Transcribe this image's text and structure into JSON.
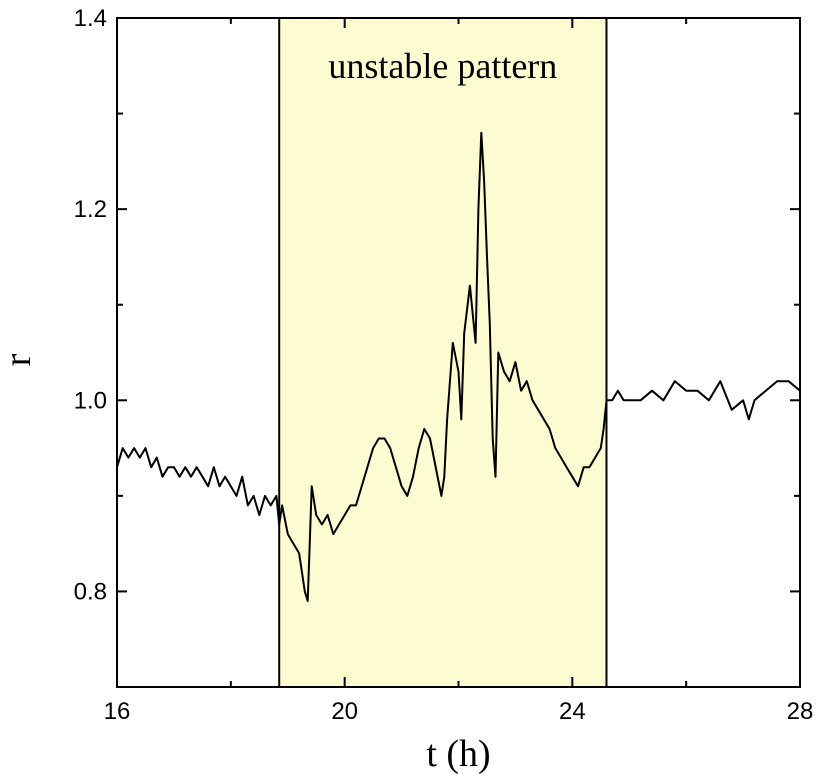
{
  "chart_data": {
    "type": "line",
    "xlabel": "t (h)",
    "ylabel": "r",
    "xlim": [
      16,
      28
    ],
    "ylim": [
      0.7,
      1.4
    ],
    "x_ticks": [
      16,
      20,
      24,
      28
    ],
    "x_tick_labels": [
      "16",
      "20",
      "24",
      "28"
    ],
    "x_minor_ticks": [
      18,
      22,
      26
    ],
    "y_ticks": [
      0.8,
      1.0,
      1.2,
      1.4
    ],
    "y_tick_labels": [
      "0.8",
      "1.0",
      "1.2",
      "1.4"
    ],
    "y_minor_ticks": [
      0.9,
      1.1,
      1.3
    ],
    "grid": false,
    "highlight_region": {
      "x_start": 18.85,
      "x_end": 24.6,
      "label": "unstable pattern",
      "color": "#fdfbd2"
    },
    "line_color": "#000000",
    "series": [
      {
        "x": [
          16.0,
          16.1,
          16.2,
          16.3,
          16.4,
          16.5,
          16.6,
          16.7,
          16.8,
          16.9,
          17.0,
          17.1,
          17.2,
          17.3,
          17.4,
          17.5,
          17.6,
          17.7,
          17.8,
          17.9,
          18.0,
          18.1,
          18.2,
          18.3,
          18.4,
          18.5,
          18.6,
          18.7,
          18.8,
          18.85,
          18.9,
          19.0,
          19.1,
          19.2,
          19.3,
          19.35,
          19.38,
          19.42,
          19.5,
          19.6,
          19.7,
          19.8,
          19.9,
          20.0,
          20.1,
          20.2,
          20.3,
          20.4,
          20.5,
          20.6,
          20.7,
          20.8,
          20.9,
          21.0,
          21.1,
          21.2,
          21.3,
          21.4,
          21.5,
          21.6,
          21.7,
          21.75,
          21.8,
          21.9,
          22.0,
          22.05,
          22.1,
          22.2,
          22.3,
          22.35,
          22.4,
          22.45,
          22.5,
          22.55,
          22.6,
          22.65,
          22.7,
          22.8,
          22.9,
          23.0,
          23.1,
          23.2,
          23.3,
          23.4,
          23.5,
          23.6,
          23.7,
          23.8,
          23.9,
          24.0,
          24.1,
          24.2,
          24.3,
          24.4,
          24.5,
          24.55,
          24.6,
          24.7,
          24.8,
          24.9,
          25.0,
          25.2,
          25.4,
          25.6,
          25.8,
          26.0,
          26.2,
          26.4,
          26.6,
          26.8,
          27.0,
          27.1,
          27.2,
          27.4,
          27.6,
          27.8,
          28.0
        ],
        "y": [
          0.93,
          0.95,
          0.94,
          0.95,
          0.94,
          0.95,
          0.93,
          0.94,
          0.92,
          0.93,
          0.93,
          0.92,
          0.93,
          0.92,
          0.93,
          0.92,
          0.91,
          0.93,
          0.91,
          0.92,
          0.91,
          0.9,
          0.92,
          0.89,
          0.9,
          0.88,
          0.9,
          0.89,
          0.9,
          0.87,
          0.89,
          0.86,
          0.85,
          0.84,
          0.8,
          0.79,
          0.84,
          0.91,
          0.88,
          0.87,
          0.88,
          0.86,
          0.87,
          0.88,
          0.89,
          0.89,
          0.91,
          0.93,
          0.95,
          0.96,
          0.96,
          0.95,
          0.93,
          0.91,
          0.9,
          0.92,
          0.95,
          0.97,
          0.96,
          0.93,
          0.9,
          0.92,
          0.98,
          1.06,
          1.03,
          0.98,
          1.07,
          1.12,
          1.06,
          1.2,
          1.28,
          1.23,
          1.15,
          1.08,
          0.96,
          0.92,
          1.05,
          1.03,
          1.02,
          1.04,
          1.01,
          1.02,
          1.0,
          0.99,
          0.98,
          0.97,
          0.95,
          0.94,
          0.93,
          0.92,
          0.91,
          0.93,
          0.93,
          0.94,
          0.95,
          0.97,
          1.0,
          1.0,
          1.01,
          1.0,
          1.0,
          1.0,
          1.01,
          1.0,
          1.02,
          1.01,
          1.01,
          1.0,
          1.02,
          0.99,
          1.0,
          0.98,
          1.0,
          1.01,
          1.02,
          1.02,
          1.01
        ]
      }
    ]
  }
}
